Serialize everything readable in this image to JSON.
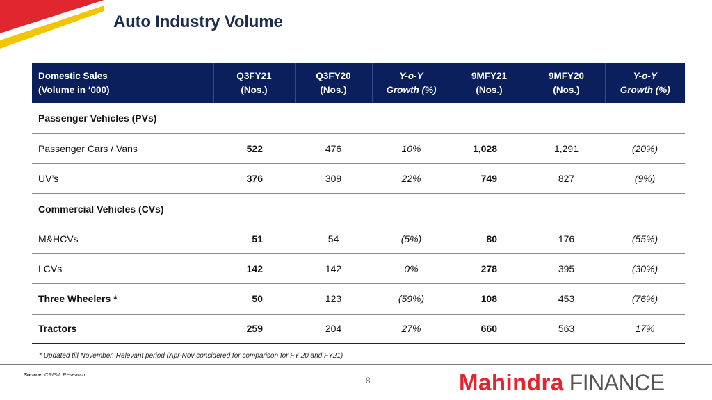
{
  "title": "Auto Industry Volume",
  "header": {
    "col0_line1": "Domestic Sales",
    "col0_line2": "(Volume in ‘000)",
    "q3fy21_line1": "Q3FY21",
    "q3fy21_line2": "(Nos.)",
    "q3fy20_line1": "Q3FY20",
    "q3fy20_line2": "(Nos.)",
    "yoy1_line1": "Y-o-Y",
    "yoy1_line2": "Growth (%)",
    "m21_line1": "9MFY21",
    "m21_line2": "(Nos.)",
    "m20_line1": "9MFY20",
    "m20_line2": "(Nos.)",
    "yoy2_line1": "Y-o-Y",
    "yoy2_line2": "Growth (%)"
  },
  "rows": [
    {
      "label": "Passenger Vehicles (PVs)"
    },
    {
      "label": "Passenger Cars / Vans",
      "q3fy21": "522",
      "q3fy20": "476",
      "yoy_q": "10%",
      "m21": "1,028",
      "m20": "1,291",
      "yoy_m": "(20%)"
    },
    {
      "label": "UV’s",
      "q3fy21": "376",
      "q3fy20": "309",
      "yoy_q": "22%",
      "m21": "749",
      "m20": "827",
      "yoy_m": "(9%)"
    },
    {
      "label": "Commercial Vehicles (CVs)"
    },
    {
      "label": "M&HCVs",
      "q3fy21": "51",
      "q3fy20": "54",
      "yoy_q": "(5%)",
      "m21": "80",
      "m20": "176",
      "yoy_m": "(55%)"
    },
    {
      "label": "LCVs",
      "q3fy21": "142",
      "q3fy20": "142",
      "yoy_q": "0%",
      "m21": "278",
      "m20": "395",
      "yoy_m": "(30%)"
    },
    {
      "label": "Three Wheelers *",
      "q3fy21": "50",
      "q3fy20": "123",
      "yoy_q": "(59%)",
      "m21": "108",
      "m20": "453",
      "yoy_m": "(76%)"
    },
    {
      "label": "Tractors",
      "q3fy21": "259",
      "q3fy20": "204",
      "yoy_q": "27%",
      "m21": "660",
      "m20": "563",
      "yoy_m": "17%"
    }
  ],
  "footnote": "* Updated till November. Relevant period (Apr-Nov considered for comparison for FY 20 and FY21)",
  "source_label": "Source:",
  "source_text": "CRISIL Research",
  "page_number": "8",
  "logo": {
    "brand": "Mahindra",
    "suffix": "FINANCE",
    "brand_color": "#e0262f"
  },
  "colors": {
    "header_bg": "#0a1f5c",
    "title": "#1c2c4c",
    "accent_red": "#e0262f",
    "accent_yellow": "#f5c400"
  }
}
